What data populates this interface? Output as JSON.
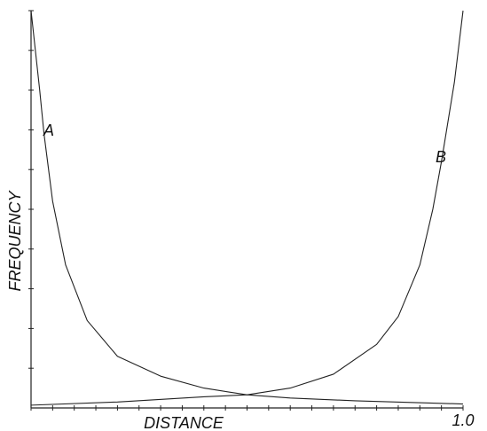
{
  "chart_data": {
    "type": "line",
    "x_label": "DISTANCE",
    "y_label": "FREQUENCY",
    "xlim": [
      0,
      1
    ],
    "ylim": [
      0,
      10
    ],
    "xticks": [
      {
        "value": 0,
        "label": null
      },
      {
        "value": 0.05,
        "label": null
      },
      {
        "value": 0.1,
        "label": null
      },
      {
        "value": 0.15,
        "label": null
      },
      {
        "value": 0.2,
        "label": null
      },
      {
        "value": 0.25,
        "label": null
      },
      {
        "value": 0.3,
        "label": null
      },
      {
        "value": 0.35,
        "label": null
      },
      {
        "value": 0.4,
        "label": null
      },
      {
        "value": 0.45,
        "label": null
      },
      {
        "value": 0.5,
        "label": null
      },
      {
        "value": 0.55,
        "label": null
      },
      {
        "value": 0.6,
        "label": null
      },
      {
        "value": 0.65,
        "label": null
      },
      {
        "value": 0.7,
        "label": null
      },
      {
        "value": 0.75,
        "label": null
      },
      {
        "value": 0.8,
        "label": null
      },
      {
        "value": 0.85,
        "label": null
      },
      {
        "value": 0.9,
        "label": null
      },
      {
        "value": 0.95,
        "label": null
      },
      {
        "value": 1,
        "label": "1.0"
      }
    ],
    "yticks": [
      {
        "value": 1,
        "label": null
      },
      {
        "value": 2,
        "label": null
      },
      {
        "value": 3,
        "label": null
      },
      {
        "value": 4,
        "label": null
      },
      {
        "value": 5,
        "label": null
      },
      {
        "value": 6,
        "label": null
      },
      {
        "value": 7,
        "label": null
      },
      {
        "value": 8,
        "label": null
      },
      {
        "value": 9,
        "label": null
      },
      {
        "value": 10,
        "label": null
      }
    ],
    "series": [
      {
        "name": "A",
        "color": "#222222",
        "x": [
          0,
          0.02,
          0.03,
          0.05,
          0.08,
          0.13,
          0.2,
          0.3,
          0.4,
          0.5,
          0.6,
          0.75,
          1
        ],
        "values": [
          10,
          8,
          6.9,
          5.2,
          3.6,
          2.2,
          1.3,
          0.8,
          0.5,
          0.33,
          0.25,
          0.18,
          0.1
        ]
      },
      {
        "name": "B",
        "color": "#222222",
        "x": [
          0,
          0.2,
          0.4,
          0.5,
          0.6,
          0.7,
          0.8,
          0.85,
          0.9,
          0.93,
          0.95,
          0.98,
          1
        ],
        "values": [
          0.07,
          0.15,
          0.28,
          0.33,
          0.5,
          0.85,
          1.6,
          2.3,
          3.6,
          5.0,
          6.2,
          8.2,
          10
        ]
      }
    ]
  }
}
